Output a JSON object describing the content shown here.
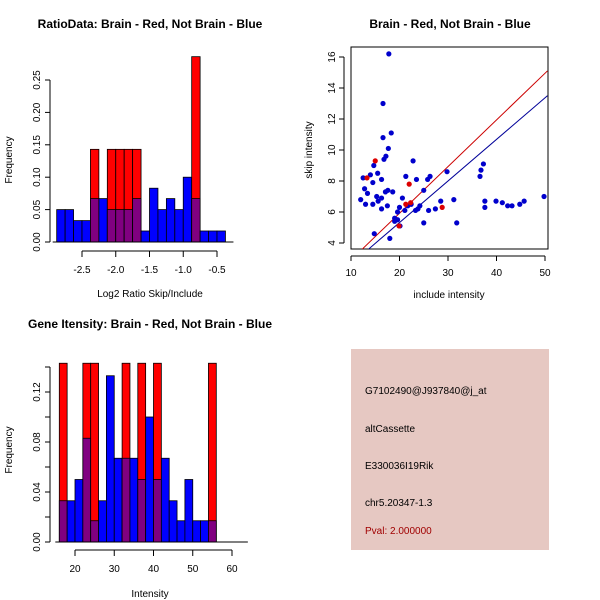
{
  "chart_data": [
    {
      "type": "bar",
      "subtype": "overlaid-histogram",
      "title": "RatioData: Brain - Red, Not Brain - Blue",
      "xlabel": "Log2 Ratio Skip/Include",
      "ylabel": "Frequency",
      "xlim": [
        -2.875,
        -0.375
      ],
      "ylim": [
        0,
        0.25
      ],
      "xticks": [
        -2.5,
        -2.0,
        -1.5,
        -1.0,
        -0.5
      ],
      "xtick_labels": [
        "-2.5",
        "-2.0",
        "-1.5",
        "-1.0",
        "-0.5"
      ],
      "yticks": [
        0.0,
        0.05,
        0.1,
        0.15,
        0.2,
        0.25
      ],
      "ytick_labels": [
        "0.00",
        "0.05",
        "0.10",
        "0.15",
        "0.20",
        "0.25"
      ],
      "bin_start": -2.875,
      "bin_width": 0.125,
      "series": [
        {
          "name": "Not Brain",
          "color": "#0000ff",
          "values": [
            0.05,
            0.05,
            0.033,
            0.033,
            0.067,
            0.067,
            0.05,
            0.05,
            0.05,
            0.067,
            0.017,
            0.083,
            0.05,
            0.067,
            0.05,
            0.1,
            0.067,
            0.017,
            0.017,
            0.017
          ]
        },
        {
          "name": "Brain",
          "color": "#ff0000",
          "values": [
            0,
            0,
            0,
            0,
            0.143,
            0,
            0.143,
            0.143,
            0.143,
            0.143,
            0,
            0,
            0,
            0,
            0,
            0,
            0.286,
            0,
            0,
            0
          ]
        }
      ],
      "overlap_color": "#800080"
    },
    {
      "type": "scatter",
      "title": "Brain - Red, Not Brain - Blue",
      "xlabel": "include intensity",
      "ylabel": "skip intensity",
      "xlim": [
        10,
        50.5
      ],
      "ylim": [
        3.6,
        16.6
      ],
      "xticks": [
        10,
        20,
        30,
        40,
        50
      ],
      "xtick_labels": [
        "10",
        "20",
        "30",
        "40",
        "50"
      ],
      "yticks": [
        4,
        6,
        8,
        10,
        12,
        14,
        16
      ],
      "ytick_labels": [
        "4",
        "6",
        "8",
        "10",
        "12",
        "14",
        "16"
      ],
      "series": [
        {
          "name": "Not Brain",
          "color": "#0000cc",
          "points": [
            [
              17.8,
              16.2
            ],
            [
              16.6,
              13.0
            ],
            [
              18.3,
              11.1
            ],
            [
              16.6,
              10.8
            ],
            [
              17.7,
              10.1
            ],
            [
              16.8,
              9.4
            ],
            [
              17.2,
              9.6
            ],
            [
              12.5,
              8.2
            ],
            [
              14.7,
              9.0
            ],
            [
              15.5,
              8.5
            ],
            [
              14.0,
              8.4
            ],
            [
              16.3,
              8.1
            ],
            [
              14.5,
              7.9
            ],
            [
              12.8,
              7.5
            ],
            [
              13.4,
              7.2
            ],
            [
              15.3,
              7.0
            ],
            [
              16.3,
              6.9
            ],
            [
              17.1,
              7.3
            ],
            [
              17.6,
              7.4
            ],
            [
              18.6,
              7.3
            ],
            [
              12.0,
              6.8
            ],
            [
              13.0,
              6.5
            ],
            [
              14.5,
              6.5
            ],
            [
              15.6,
              6.7
            ],
            [
              16.3,
              6.2
            ],
            [
              17.5,
              6.4
            ],
            [
              19.0,
              5.6
            ],
            [
              19.6,
              6.0
            ],
            [
              20.0,
              6.3
            ],
            [
              21.1,
              6.1
            ],
            [
              22.4,
              6.5
            ],
            [
              23.3,
              6.1
            ],
            [
              20.6,
              6.9
            ],
            [
              21.3,
              8.3
            ],
            [
              22.8,
              9.3
            ],
            [
              23.5,
              8.1
            ],
            [
              25.0,
              7.4
            ],
            [
              25.8,
              8.1
            ],
            [
              26.3,
              8.3
            ],
            [
              19.0,
              5.4
            ],
            [
              19.6,
              5.5
            ],
            [
              20.1,
              5.1
            ],
            [
              21.7,
              6.4
            ],
            [
              23.8,
              6.2
            ],
            [
              24.2,
              6.4
            ],
            [
              25.0,
              5.3
            ],
            [
              26.0,
              6.1
            ],
            [
              27.4,
              6.2
            ],
            [
              28.5,
              6.7
            ],
            [
              29.8,
              8.6
            ],
            [
              31.2,
              6.8
            ],
            [
              31.8,
              5.3
            ],
            [
              18.0,
              4.3
            ],
            [
              14.8,
              4.6
            ],
            [
              36.6,
              8.3
            ],
            [
              36.8,
              8.7
            ],
            [
              37.3,
              9.1
            ],
            [
              37.6,
              6.7
            ],
            [
              37.6,
              6.3
            ],
            [
              39.9,
              6.7
            ],
            [
              41.2,
              6.6
            ],
            [
              42.3,
              6.4
            ],
            [
              43.2,
              6.4
            ],
            [
              44.8,
              6.5
            ],
            [
              45.7,
              6.7
            ],
            [
              49.8,
              7.0
            ]
          ]
        },
        {
          "name": "Brain",
          "color": "#dd0000",
          "points": [
            [
              15.0,
              9.3
            ],
            [
              13.3,
              8.2
            ],
            [
              22.0,
              7.8
            ],
            [
              21.3,
              6.5
            ],
            [
              22.3,
              6.6
            ],
            [
              28.8,
              6.3
            ],
            [
              19.9,
              5.1
            ]
          ]
        }
      ],
      "lines": [
        {
          "name": "Brain fit",
          "color": "#cc0000",
          "from": [
            12.3,
            3.6
          ],
          "to": [
            50.5,
            15.1
          ]
        },
        {
          "name": "Not Brain fit",
          "color": "#000099",
          "from": [
            13.6,
            3.6
          ],
          "to": [
            50.5,
            13.5
          ]
        }
      ]
    },
    {
      "type": "bar",
      "subtype": "overlaid-histogram",
      "title": "Gene Itensity: Brain - Red, Not Brain - Blue",
      "xlabel": "Intensity",
      "ylabel": "Frequency",
      "xlim": [
        16,
        62
      ],
      "ylim": [
        0,
        0.143
      ],
      "xticks": [
        20,
        30,
        40,
        50,
        60
      ],
      "xtick_labels": [
        "20",
        "30",
        "40",
        "50",
        "60"
      ],
      "yticks": [
        0.0,
        0.04,
        0.08,
        0.12
      ],
      "ytick_labels": [
        "0.00",
        "0.04",
        "0.08",
        "0.12"
      ],
      "minor_yticks": [
        0.02,
        0.06,
        0.1,
        0.14
      ],
      "bin_start": 16,
      "bin_width": 2,
      "series": [
        {
          "name": "Not Brain",
          "color": "#0000ff",
          "values": [
            0.033,
            0.033,
            0.05,
            0.083,
            0.017,
            0.033,
            0.133,
            0.067,
            0.067,
            0.067,
            0.05,
            0.1,
            0.05,
            0.067,
            0.033,
            0.017,
            0.05,
            0.017,
            0.017,
            0.017,
            0.0,
            0.0,
            0.0
          ]
        },
        {
          "name": "Brain",
          "color": "#ff0000",
          "values": [
            0.143,
            0,
            0,
            0.143,
            0.143,
            0,
            0,
            0,
            0.143,
            0,
            0.143,
            0,
            0.143,
            0,
            0,
            0,
            0,
            0,
            0,
            0.143,
            0,
            0,
            0
          ]
        }
      ],
      "overlap_color": "#800080"
    }
  ],
  "info_panel": {
    "probe_id": "G7102490@J937840@j_at",
    "event_type": "altCassette",
    "gene_name": "E330036I19Rik",
    "location": "chr5.20347-1.3",
    "pval": "Pval: 2.000000"
  }
}
